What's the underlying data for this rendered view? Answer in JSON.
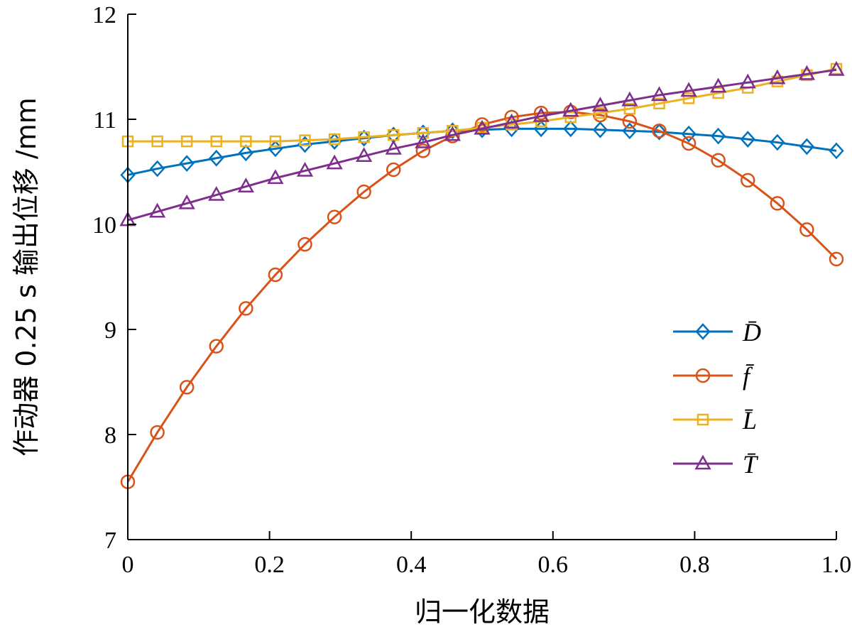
{
  "chart_data": {
    "type": "line",
    "title": "",
    "xlabel": "归一化数据",
    "ylabel": "作动器 0.25 s 输出位移 /mm",
    "xlim": [
      0,
      1.0
    ],
    "ylim": [
      7,
      12
    ],
    "x_ticks": [
      "0",
      "0.2",
      "0.4",
      "0.6",
      "0.8",
      "1.0"
    ],
    "y_ticks": [
      "7",
      "8",
      "9",
      "10",
      "11",
      "12"
    ],
    "grid": false,
    "legend_position": "right-center",
    "x": [
      0,
      0.0417,
      0.0833,
      0.125,
      0.1667,
      0.2083,
      0.25,
      0.2917,
      0.3333,
      0.375,
      0.4167,
      0.4583,
      0.5,
      0.5417,
      0.5833,
      0.625,
      0.6667,
      0.7083,
      0.75,
      0.7917,
      0.8333,
      0.875,
      0.9167,
      0.9583,
      1.0
    ],
    "series": [
      {
        "name": "D",
        "legend_label": "D̄",
        "color": "#0072BD",
        "marker": "diamond",
        "values": [
          10.47,
          10.53,
          10.58,
          10.63,
          10.68,
          10.72,
          10.76,
          10.79,
          10.82,
          10.85,
          10.87,
          10.89,
          10.9,
          10.91,
          10.91,
          10.91,
          10.9,
          10.89,
          10.88,
          10.86,
          10.84,
          10.81,
          10.78,
          10.74,
          10.7
        ]
      },
      {
        "name": "f",
        "legend_label": "f̄",
        "color": "#D95319",
        "marker": "circle",
        "values": [
          7.55,
          8.02,
          8.45,
          8.84,
          9.2,
          9.52,
          9.81,
          10.07,
          10.31,
          10.52,
          10.7,
          10.84,
          10.95,
          11.02,
          11.06,
          11.07,
          11.04,
          10.98,
          10.89,
          10.77,
          10.61,
          10.42,
          10.2,
          9.95,
          9.67
        ]
      },
      {
        "name": "L",
        "legend_label": "L̄",
        "color": "#EDB120",
        "marker": "square",
        "values": [
          10.79,
          10.79,
          10.79,
          10.79,
          10.79,
          10.79,
          10.8,
          10.81,
          10.83,
          10.85,
          10.87,
          10.89,
          10.92,
          10.95,
          10.98,
          11.02,
          11.06,
          11.1,
          11.15,
          11.2,
          11.25,
          11.3,
          11.36,
          11.42,
          11.48
        ]
      },
      {
        "name": "T",
        "legend_label": "T̄",
        "color": "#7E2F8E",
        "marker": "triangle",
        "values": [
          10.04,
          10.12,
          10.2,
          10.28,
          10.36,
          10.44,
          10.51,
          10.58,
          10.65,
          10.72,
          10.78,
          10.85,
          10.91,
          10.97,
          11.03,
          11.08,
          11.13,
          11.18,
          11.23,
          11.27,
          11.31,
          11.35,
          11.39,
          11.43,
          11.47
        ]
      }
    ]
  }
}
